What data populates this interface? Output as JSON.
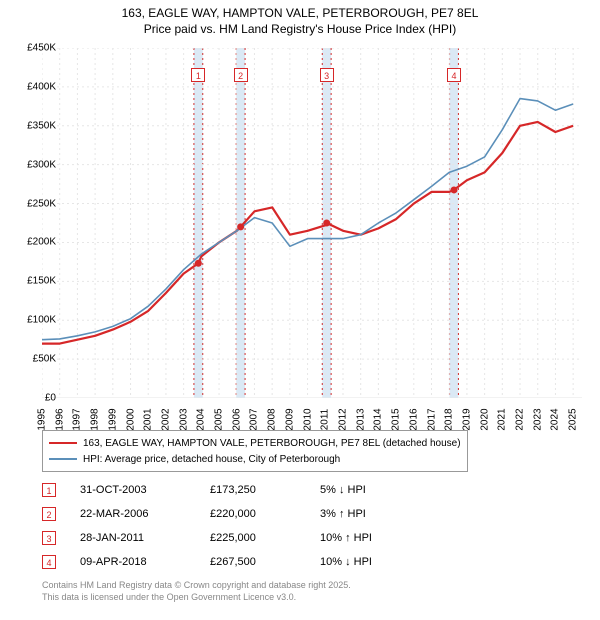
{
  "title": {
    "line1": "163, EAGLE WAY, HAMPTON VALE, PETERBOROUGH, PE7 8EL",
    "line2": "Price paid vs. HM Land Registry's House Price Index (HPI)",
    "fontsize": 12,
    "color": "#000000"
  },
  "chart": {
    "type": "line",
    "background_color": "#ffffff",
    "grid_color": "#e6e6e6",
    "grid_dash": "2,3",
    "ylim": [
      0,
      450000
    ],
    "xlim": [
      1995,
      2025.5
    ],
    "y_ticks": [
      0,
      50000,
      100000,
      150000,
      200000,
      250000,
      300000,
      350000,
      400000,
      450000
    ],
    "y_tick_labels": [
      "£0",
      "£50K",
      "£100K",
      "£150K",
      "£200K",
      "£250K",
      "£300K",
      "£350K",
      "£400K",
      "£450K"
    ],
    "x_ticks": [
      1995,
      1996,
      1997,
      1998,
      1999,
      2000,
      2001,
      2002,
      2003,
      2004,
      2005,
      2006,
      2007,
      2008,
      2009,
      2010,
      2011,
      2012,
      2013,
      2014,
      2015,
      2016,
      2017,
      2018,
      2019,
      2020,
      2021,
      2022,
      2023,
      2024,
      2025
    ],
    "x_tick_labels": [
      "1995",
      "1996",
      "1997",
      "1998",
      "1999",
      "2000",
      "2001",
      "2002",
      "2003",
      "2004",
      "2005",
      "2006",
      "2007",
      "2008",
      "2009",
      "2010",
      "2011",
      "2012",
      "2013",
      "2014",
      "2015",
      "2016",
      "2017",
      "2018",
      "2019",
      "2020",
      "2021",
      "2022",
      "2023",
      "2024",
      "2025"
    ],
    "sale_bands": {
      "fill": "#dbe9f5",
      "border_color": "#d03030",
      "border_dash": "2,3",
      "band_half_width_years": 0.25,
      "positions": [
        2003.83,
        2006.22,
        2011.08,
        2018.27
      ]
    },
    "series": [
      {
        "name": "price_paid",
        "label": "163, EAGLE WAY, HAMPTON VALE, PETERBOROUGH, PE7 8EL (detached house)",
        "color": "#d62728",
        "line_width": 2.2,
        "x": [
          1995,
          1996,
          1997,
          1998,
          1999,
          2000,
          2001,
          2002,
          2003,
          2003.83,
          2004,
          2005,
          2006,
          2006.22,
          2007,
          2008,
          2009,
          2010,
          2011,
          2011.08,
          2012,
          2013,
          2014,
          2015,
          2016,
          2017,
          2018,
          2018.27,
          2019,
          2020,
          2021,
          2022,
          2023,
          2024,
          2025
        ],
        "y": [
          70000,
          70000,
          75000,
          80000,
          88000,
          98000,
          112000,
          135000,
          160000,
          173250,
          182000,
          200000,
          215000,
          220000,
          240000,
          245000,
          210000,
          215000,
          222000,
          225000,
          215000,
          210000,
          218000,
          230000,
          250000,
          265000,
          265000,
          267500,
          280000,
          290000,
          315000,
          350000,
          355000,
          342000,
          350000
        ]
      },
      {
        "name": "hpi",
        "label": "HPI: Average price, detached house, City of Peterborough",
        "color": "#5b8fb9",
        "line_width": 1.6,
        "x": [
          1995,
          1996,
          1997,
          1998,
          1999,
          2000,
          2001,
          2002,
          2003,
          2004,
          2005,
          2006,
          2007,
          2008,
          2009,
          2010,
          2011,
          2012,
          2013,
          2014,
          2015,
          2016,
          2017,
          2018,
          2019,
          2020,
          2021,
          2022,
          2023,
          2024,
          2025
        ],
        "y": [
          75000,
          76000,
          80000,
          85000,
          92000,
          102000,
          118000,
          140000,
          165000,
          185000,
          200000,
          215000,
          232000,
          225000,
          195000,
          205000,
          205000,
          205000,
          210000,
          225000,
          238000,
          255000,
          272000,
          290000,
          298000,
          310000,
          345000,
          385000,
          382000,
          370000,
          378000
        ]
      }
    ],
    "sale_markers": [
      {
        "num": "1",
        "x": 2003.83,
        "y_top": 415000,
        "color": "#d62728",
        "dot_y": 173250
      },
      {
        "num": "2",
        "x": 2006.22,
        "y_top": 415000,
        "color": "#d62728",
        "dot_y": 220000
      },
      {
        "num": "3",
        "x": 2011.08,
        "y_top": 415000,
        "color": "#d62728",
        "dot_y": 225000
      },
      {
        "num": "4",
        "x": 2018.27,
        "y_top": 415000,
        "color": "#d62728",
        "dot_y": 267500
      }
    ]
  },
  "legend": {
    "items": [
      {
        "color": "#d62728",
        "width": 2.5,
        "label": "163, EAGLE WAY, HAMPTON VALE, PETERBOROUGH, PE7 8EL (detached house)"
      },
      {
        "color": "#5b8fb9",
        "width": 2.0,
        "label": "HPI: Average price, detached house, City of Peterborough"
      }
    ],
    "fontsize": 10
  },
  "sales_table": {
    "rows": [
      {
        "num": "1",
        "color": "#d62728",
        "date": "31-OCT-2003",
        "price": "£173,250",
        "diff": "5% ↓ HPI"
      },
      {
        "num": "2",
        "color": "#d62728",
        "date": "22-MAR-2006",
        "price": "£220,000",
        "diff": "3% ↑ HPI"
      },
      {
        "num": "3",
        "color": "#d62728",
        "date": "28-JAN-2011",
        "price": "£225,000",
        "diff": "10% ↑ HPI"
      },
      {
        "num": "4",
        "color": "#d62728",
        "date": "09-APR-2018",
        "price": "£267,500",
        "diff": "10% ↓ HPI"
      }
    ]
  },
  "footer": {
    "line1": "Contains HM Land Registry data © Crown copyright and database right 2025.",
    "line2": "This data is licensed under the Open Government Licence v3.0."
  }
}
